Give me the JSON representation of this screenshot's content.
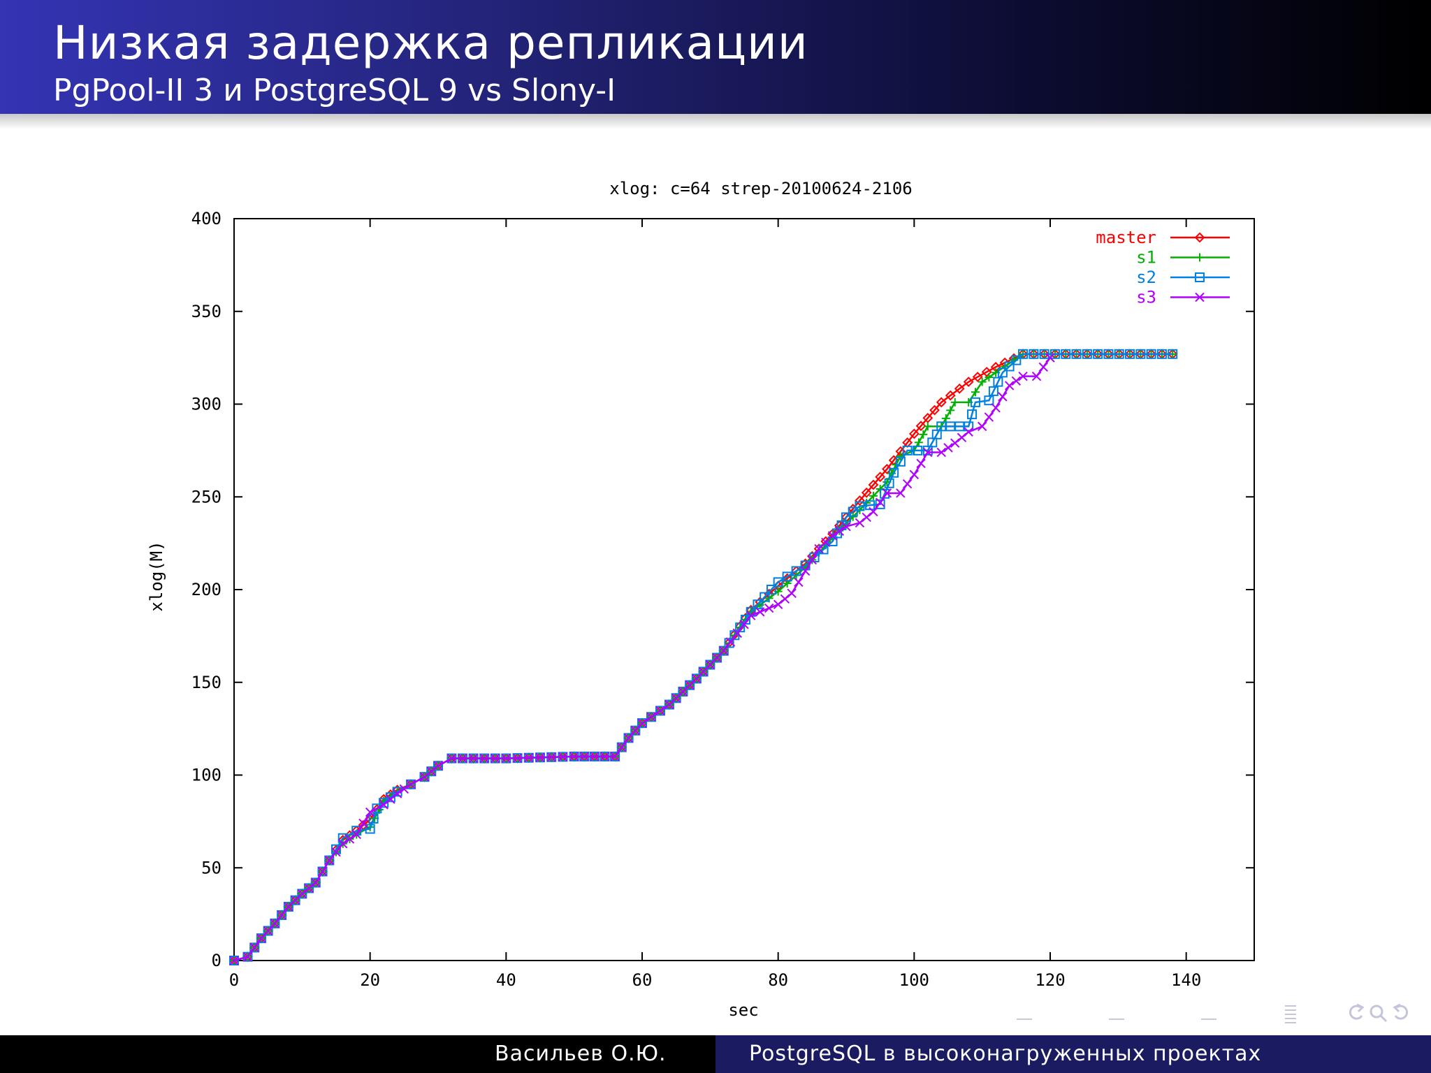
{
  "slide": {
    "title": "Низкая задержка репликации",
    "subtitle": "PgPool-II 3 и PostgreSQL 9 vs Slony-I"
  },
  "footer": {
    "author": "Васильев О.Ю.",
    "talk_title": "PostgreSQL в высоконагруженных проектах"
  },
  "navigation": {
    "icons": [
      "toc-icon",
      "back-icon",
      "search-icon",
      "forward-icon"
    ]
  },
  "chart_data": {
    "type": "line",
    "title": "xlog: c=64 strep-20100624-2106",
    "xlabel": "sec",
    "ylabel": "xlog(M)",
    "xlim": [
      0,
      150
    ],
    "ylim": [
      0,
      400
    ],
    "xticks": [
      0,
      20,
      40,
      60,
      80,
      100,
      120,
      140
    ],
    "yticks": [
      0,
      50,
      100,
      150,
      200,
      250,
      300,
      350,
      400
    ],
    "grid": false,
    "legend_position": "top-right",
    "series": [
      {
        "name": "master",
        "color": "#ff0000",
        "marker": "diamond",
        "points": [
          [
            0,
            0
          ],
          [
            2,
            2
          ],
          [
            4,
            12
          ],
          [
            6,
            20
          ],
          [
            8,
            29
          ],
          [
            10,
            36
          ],
          [
            12,
            42
          ],
          [
            14,
            54
          ],
          [
            16,
            65
          ],
          [
            18,
            70
          ],
          [
            20,
            76
          ],
          [
            22,
            87
          ],
          [
            24,
            92
          ],
          [
            26,
            95
          ],
          [
            28,
            99
          ],
          [
            30,
            105
          ],
          [
            32,
            109
          ],
          [
            40,
            109
          ],
          [
            50,
            110
          ],
          [
            56,
            110
          ],
          [
            58,
            120
          ],
          [
            60,
            128
          ],
          [
            64,
            138
          ],
          [
            68,
            152
          ],
          [
            72,
            167
          ],
          [
            76,
            189
          ],
          [
            80,
            202
          ],
          [
            84,
            214
          ],
          [
            88,
            230
          ],
          [
            92,
            248
          ],
          [
            96,
            265
          ],
          [
            100,
            284
          ],
          [
            104,
            301
          ],
          [
            108,
            312
          ],
          [
            112,
            320
          ],
          [
            116,
            327
          ],
          [
            138,
            327
          ]
        ]
      },
      {
        "name": "s1",
        "color": "#00b000",
        "marker": "plus",
        "points": [
          [
            0,
            0
          ],
          [
            2,
            2
          ],
          [
            4,
            12
          ],
          [
            6,
            20
          ],
          [
            8,
            29
          ],
          [
            10,
            36
          ],
          [
            12,
            42
          ],
          [
            14,
            54
          ],
          [
            16,
            63
          ],
          [
            18,
            68
          ],
          [
            20,
            72
          ],
          [
            22,
            86
          ],
          [
            24,
            91
          ],
          [
            26,
            95
          ],
          [
            28,
            99
          ],
          [
            30,
            105
          ],
          [
            32,
            109
          ],
          [
            40,
            109
          ],
          [
            50,
            110
          ],
          [
            56,
            110
          ],
          [
            58,
            120
          ],
          [
            60,
            128
          ],
          [
            64,
            138
          ],
          [
            68,
            152
          ],
          [
            72,
            167
          ],
          [
            76,
            188
          ],
          [
            80,
            199
          ],
          [
            84,
            212
          ],
          [
            88,
            228
          ],
          [
            92,
            243
          ],
          [
            96,
            258
          ],
          [
            98,
            272
          ],
          [
            100,
            275
          ],
          [
            102,
            288
          ],
          [
            104,
            288
          ],
          [
            106,
            301
          ],
          [
            108,
            301
          ],
          [
            110,
            312
          ],
          [
            112,
            317
          ],
          [
            116,
            327
          ],
          [
            138,
            327
          ]
        ]
      },
      {
        "name": "s2",
        "color": "#0080e0",
        "marker": "square",
        "points": [
          [
            0,
            0
          ],
          [
            2,
            2
          ],
          [
            4,
            12
          ],
          [
            6,
            20
          ],
          [
            8,
            29
          ],
          [
            10,
            36
          ],
          [
            12,
            42
          ],
          [
            14,
            54
          ],
          [
            16,
            66
          ],
          [
            18,
            70
          ],
          [
            20,
            71
          ],
          [
            21,
            82
          ],
          [
            24,
            91
          ],
          [
            26,
            95
          ],
          [
            28,
            99
          ],
          [
            30,
            105
          ],
          [
            32,
            109
          ],
          [
            40,
            109
          ],
          [
            50,
            110
          ],
          [
            56,
            110
          ],
          [
            58,
            120
          ],
          [
            60,
            128
          ],
          [
            64,
            138
          ],
          [
            68,
            152
          ],
          [
            72,
            167
          ],
          [
            76,
            188
          ],
          [
            80,
            204
          ],
          [
            84,
            213
          ],
          [
            88,
            226
          ],
          [
            90,
            239
          ],
          [
            92,
            245
          ],
          [
            95,
            246
          ],
          [
            97,
            263
          ],
          [
            99,
            275
          ],
          [
            102,
            275
          ],
          [
            104,
            288
          ],
          [
            108,
            288
          ],
          [
            109,
            301
          ],
          [
            111,
            302
          ],
          [
            113,
            317
          ],
          [
            116,
            327
          ],
          [
            138,
            327
          ]
        ]
      },
      {
        "name": "s3",
        "color": "#b000ff",
        "marker": "cross",
        "points": [
          [
            0,
            0
          ],
          [
            2,
            2
          ],
          [
            4,
            12
          ],
          [
            6,
            20
          ],
          [
            8,
            29
          ],
          [
            10,
            36
          ],
          [
            12,
            42
          ],
          [
            14,
            54
          ],
          [
            16,
            63
          ],
          [
            18,
            68
          ],
          [
            20,
            80
          ],
          [
            22,
            84
          ],
          [
            24,
            90
          ],
          [
            26,
            95
          ],
          [
            28,
            99
          ],
          [
            30,
            105
          ],
          [
            32,
            109
          ],
          [
            40,
            109
          ],
          [
            50,
            110
          ],
          [
            56,
            110
          ],
          [
            58,
            120
          ],
          [
            60,
            128
          ],
          [
            64,
            138
          ],
          [
            68,
            152
          ],
          [
            72,
            167
          ],
          [
            76,
            186
          ],
          [
            80,
            192
          ],
          [
            82,
            198
          ],
          [
            84,
            210
          ],
          [
            86,
            222
          ],
          [
            88,
            229
          ],
          [
            90,
            234
          ],
          [
            92,
            236
          ],
          [
            94,
            242
          ],
          [
            96,
            252
          ],
          [
            98,
            252
          ],
          [
            100,
            262
          ],
          [
            102,
            274
          ],
          [
            104,
            274
          ],
          [
            106,
            279
          ],
          [
            108,
            285
          ],
          [
            110,
            288
          ],
          [
            112,
            298
          ],
          [
            114,
            310
          ],
          [
            116,
            315
          ],
          [
            118,
            315
          ],
          [
            120,
            325
          ]
        ]
      }
    ]
  }
}
